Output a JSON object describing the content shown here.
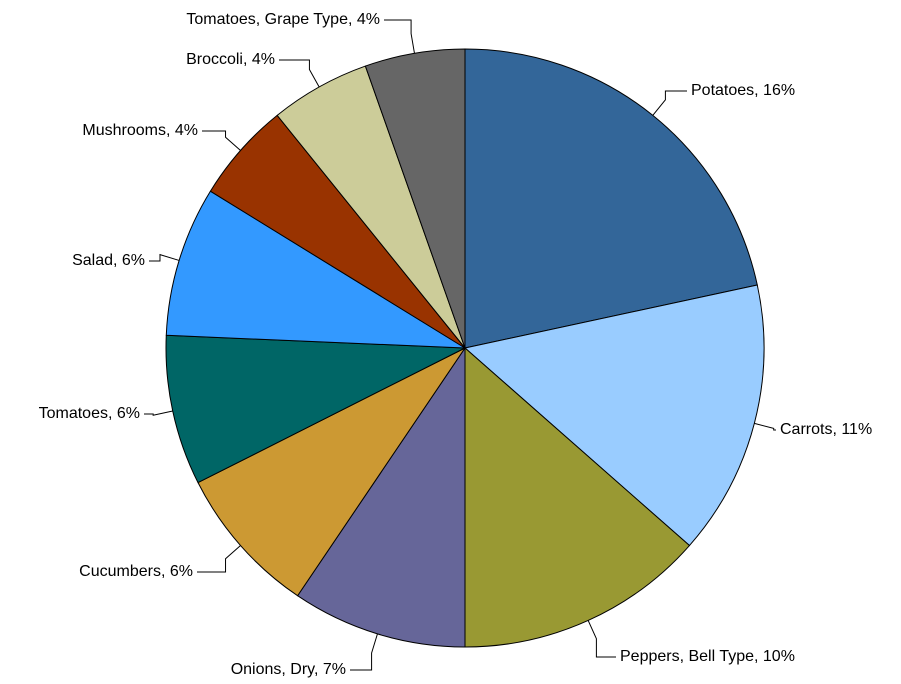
{
  "chart_data": {
    "type": "pie",
    "title": "",
    "start_angle_deg": 0,
    "direction": "clockwise",
    "slices": [
      {
        "label": "Potatoes, 16%",
        "value": 16,
        "color": "#336699"
      },
      {
        "label": "Carrots, 11%",
        "value": 11,
        "color": "#99CCFF"
      },
      {
        "label": "Peppers, Bell Type, 10%",
        "value": 10,
        "color": "#999933"
      },
      {
        "label": "Onions, Dry, 7%",
        "value": 7,
        "color": "#666699"
      },
      {
        "label": "Cucumbers, 6%",
        "value": 6,
        "color": "#CC9933"
      },
      {
        "label": "Tomatoes, 6%",
        "value": 6,
        "color": "#006666"
      },
      {
        "label": "Salad, 6%",
        "value": 6,
        "color": "#3399FF"
      },
      {
        "label": "Mushrooms, 4%",
        "value": 4,
        "color": "#993300"
      },
      {
        "label": "Broccoli, 4%",
        "value": 4,
        "color": "#CCCC99"
      },
      {
        "label": "Tomatoes, Grape Type, 4%",
        "value": 4,
        "color": "#666666"
      }
    ]
  }
}
